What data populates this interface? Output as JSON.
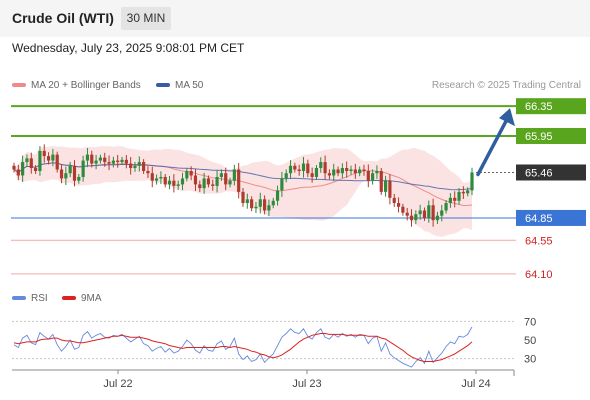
{
  "header": {
    "title": "Crude Oil (WTI)",
    "timeframe": "30 MIN",
    "datetime": "Wednesday, July 23, 2025 9:08:01 PM CET"
  },
  "legend": {
    "bollinger": "MA 20 + Bollinger Bands",
    "ma50": "MA 50",
    "credit": "Research © 2025 Trading Central"
  },
  "rsi_legend": {
    "rsi": "RSI",
    "ma": "9MA"
  },
  "colors": {
    "up": "#2e8b3e",
    "down": "#b03a2e",
    "bollinger_band": "#fcdede",
    "ma20": "#f08a8a",
    "ma50": "#3a5ba8",
    "resistance": "#5aa51e",
    "support_blue": "#3a75d6",
    "support_red": "#f2a9a9",
    "current_price": "#333333",
    "arrow": "#2f5f9e",
    "rsi": "#6688dd",
    "rsi_ma": "#dd2222"
  },
  "chart_data": [
    {
      "type": "candlestick",
      "title": "Crude Oil (WTI) 30 MIN",
      "x_tick_labels": [
        "Jul 22",
        "Jul 23",
        "Jul 24"
      ],
      "ylim": [
        63.95,
        66.5
      ],
      "closes": [
        65.5,
        65.42,
        65.6,
        65.65,
        65.52,
        65.48,
        65.75,
        65.68,
        65.62,
        65.7,
        65.5,
        65.38,
        65.45,
        65.55,
        65.35,
        65.4,
        65.62,
        65.7,
        65.58,
        65.62,
        65.66,
        65.6,
        65.58,
        65.62,
        65.6,
        65.63,
        65.58,
        65.52,
        65.55,
        65.6,
        65.48,
        65.45,
        65.35,
        65.38,
        65.4,
        65.3,
        65.35,
        65.28,
        65.3,
        65.38,
        65.48,
        65.42,
        65.3,
        65.25,
        65.38,
        65.3,
        65.28,
        65.4,
        65.45,
        65.3,
        65.35,
        65.5,
        65.2,
        65.05,
        65.1,
        64.98,
        65.0,
        65.1,
        64.95,
        65.02,
        65.08,
        65.22,
        65.38,
        65.45,
        65.55,
        65.5,
        65.48,
        65.58,
        65.45,
        65.4,
        65.52,
        65.6,
        65.45,
        65.42,
        65.5,
        65.45,
        65.52,
        65.48,
        65.5,
        65.45,
        65.5,
        65.48,
        65.35,
        65.45,
        65.48,
        65.2,
        65.35,
        65.12,
        65.05,
        65.0,
        64.92,
        64.88,
        64.82,
        64.9,
        64.95,
        64.85,
        65.02,
        64.82,
        64.88,
        64.95,
        65.05,
        65.12,
        65.08,
        65.2,
        65.18,
        65.22,
        65.46
      ],
      "annotations": {
        "resistance_levels": [
          "66.35",
          "65.95"
        ],
        "current_price": "65.46",
        "support_levels": [
          "64.85",
          "64.55",
          "64.10"
        ],
        "forecast_arrow_target": "66.35"
      },
      "series": [
        {
          "name": "MA 20 + Bollinger Bands"
        },
        {
          "name": "MA 50"
        }
      ]
    },
    {
      "type": "line",
      "y_tick_labels": [
        "70",
        "50",
        "30"
      ],
      "ylim": [
        20,
        80
      ],
      "series": [
        {
          "name": "RSI",
          "values": [
            45,
            42,
            52,
            55,
            47,
            45,
            58,
            54,
            51,
            56,
            45,
            38,
            43,
            50,
            40,
            42,
            55,
            59,
            52,
            55,
            57,
            53,
            52,
            55,
            54,
            56,
            52,
            48,
            51,
            54,
            46,
            44,
            38,
            41,
            43,
            37,
            41,
            36,
            38,
            43,
            50,
            46,
            39,
            36,
            44,
            39,
            38,
            46,
            49,
            40,
            43,
            52,
            35,
            29,
            33,
            27,
            29,
            35,
            26,
            31,
            35,
            44,
            53,
            57,
            62,
            58,
            57,
            62,
            54,
            51,
            58,
            62,
            53,
            51,
            56,
            53,
            57,
            54,
            56,
            53,
            56,
            55,
            46,
            52,
            54,
            38,
            47,
            35,
            31,
            28,
            25,
            23,
            21,
            27,
            31,
            25,
            38,
            26,
            31,
            36,
            43,
            48,
            46,
            54,
            53,
            56,
            64
          ]
        },
        {
          "name": "9MA",
          "values": [
            47,
            46,
            47,
            48,
            48,
            48,
            50,
            51,
            51,
            52,
            52,
            50,
            49,
            49,
            48,
            47,
            47,
            48,
            49,
            50,
            51,
            52,
            53,
            54,
            54,
            55,
            54,
            53,
            53,
            53,
            52,
            51,
            49,
            48,
            47,
            46,
            44,
            43,
            42,
            41,
            42,
            42,
            42,
            42,
            42,
            42,
            42,
            42,
            43,
            43,
            42,
            43,
            42,
            41,
            40,
            38,
            37,
            35,
            34,
            32,
            31,
            32,
            34,
            37,
            40,
            44,
            48,
            51,
            53,
            55,
            56,
            57,
            57,
            56,
            56,
            56,
            56,
            55,
            55,
            55,
            55,
            55,
            54,
            54,
            54,
            52,
            51,
            48,
            45,
            42,
            39,
            35,
            32,
            30,
            28,
            27,
            27,
            27,
            28,
            29,
            31,
            33,
            35,
            38,
            41,
            44,
            48
          ]
        }
      ]
    }
  ]
}
